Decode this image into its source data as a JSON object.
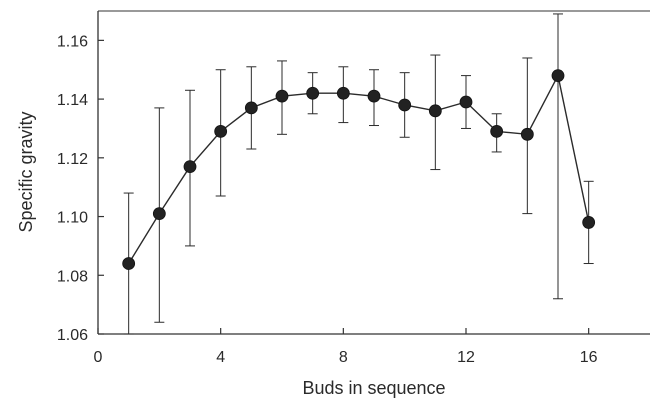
{
  "chart_data": {
    "type": "line",
    "xlabel": "Buds in sequence",
    "ylabel": "Specific gravity",
    "xlim": [
      0,
      18
    ],
    "ylim": [
      1.06,
      1.17
    ],
    "x_ticks": [
      0,
      4,
      8,
      12,
      16
    ],
    "y_ticks": [
      1.06,
      1.08,
      1.1,
      1.12,
      1.14,
      1.16
    ],
    "y_tick_labels": [
      "1.06",
      "1.08",
      "1.10",
      "1.12",
      "1.14",
      "1.16"
    ],
    "grid": false,
    "marker": "filled-circle",
    "error_bars": true,
    "series": [
      {
        "x": [
          1,
          2,
          3,
          4,
          5,
          6,
          7,
          8,
          9,
          10,
          11,
          12,
          13,
          14,
          15,
          16
        ],
        "y": [
          1.084,
          1.101,
          1.117,
          1.129,
          1.137,
          1.141,
          1.142,
          1.142,
          1.141,
          1.138,
          1.136,
          1.139,
          1.129,
          1.128,
          1.148,
          1.098
        ],
        "err_high": [
          1.108,
          1.137,
          1.143,
          1.15,
          1.151,
          1.153,
          1.149,
          1.151,
          1.15,
          1.149,
          1.155,
          1.148,
          1.135,
          1.154,
          1.169,
          1.112
        ],
        "err_low": [
          1.06,
          1.064,
          1.09,
          1.107,
          1.123,
          1.128,
          1.135,
          1.132,
          1.131,
          1.127,
          1.116,
          1.13,
          1.122,
          1.101,
          1.072,
          1.084
        ]
      }
    ],
    "colors": {
      "line": "#2b2b2b",
      "marker": "#222222",
      "axis": "#333333",
      "text": "#2a2a2a"
    }
  }
}
